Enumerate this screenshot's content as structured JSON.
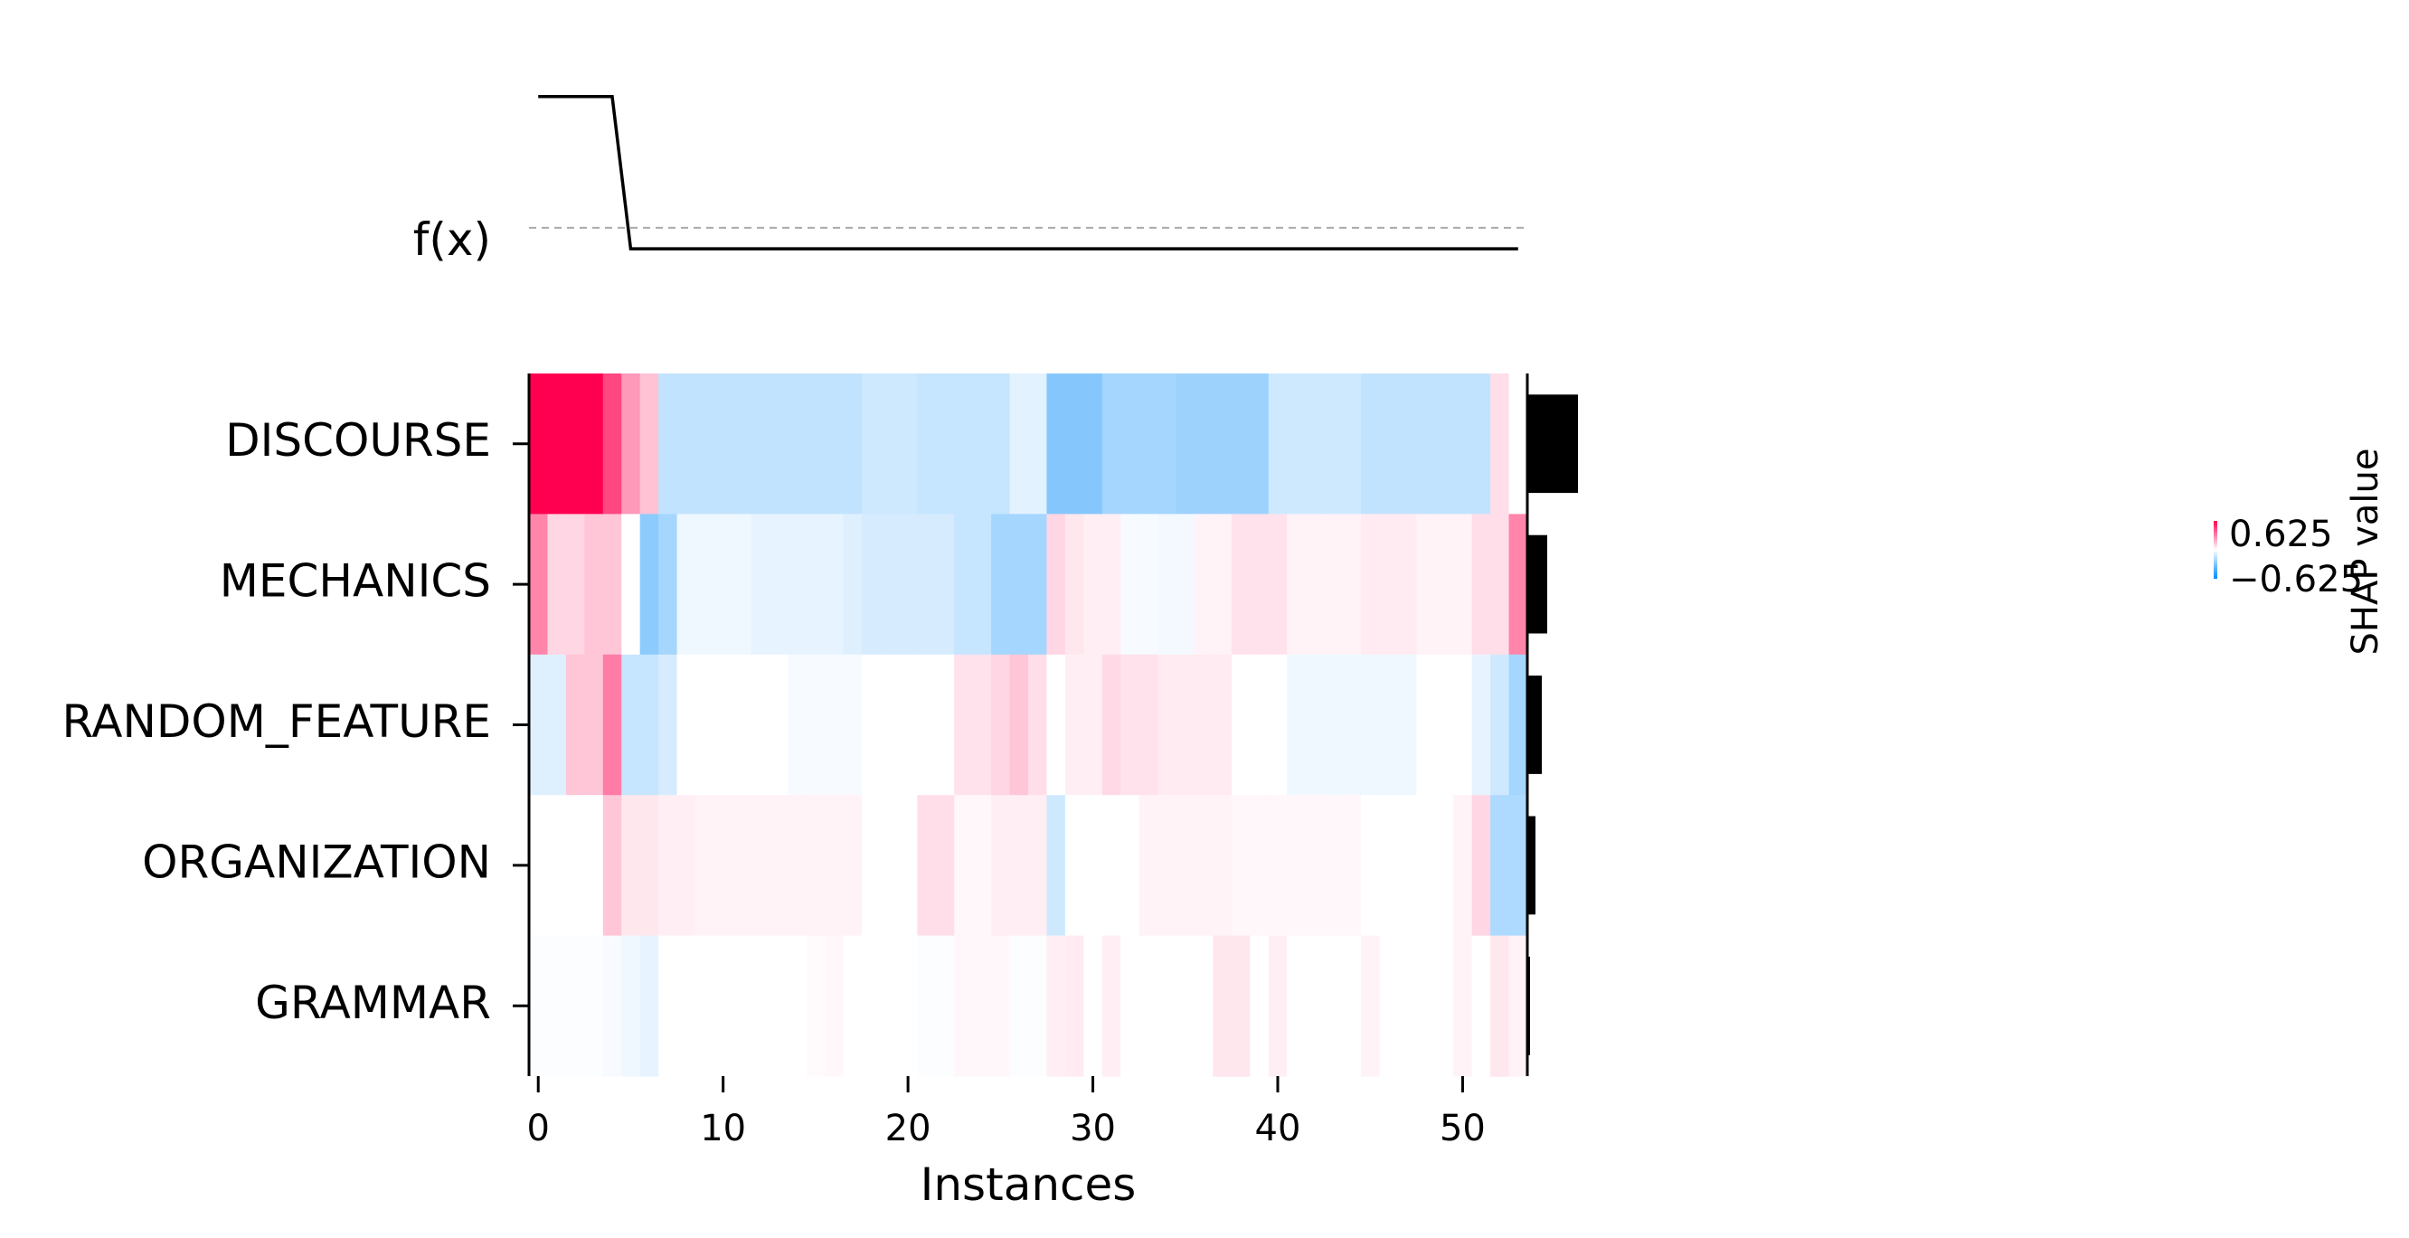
{
  "chart_data": {
    "type": "heatmap",
    "title": "",
    "xlabel": "Instances",
    "ylabel": "",
    "fx_label": "f(x)",
    "features": [
      "DISCOURSE",
      "MECHANICS",
      "RANDOM_FEATURE",
      "ORGANIZATION",
      "GRAMMAR"
    ],
    "x_ticks": [
      0,
      10,
      20,
      30,
      40,
      50
    ],
    "n_instances": 54,
    "xlim": [
      -0.5,
      53.5
    ],
    "colorbar": {
      "label": "SHAP value",
      "vmin": -0.625,
      "vmax": 0.625,
      "tick_labels": [
        "0.625",
        "−0.625"
      ]
    },
    "colors": {
      "positive": "#ff0051",
      "negative": "#008bfb",
      "neutral": "#ffffff"
    },
    "fx_values": [
      1.0,
      1.0,
      1.0,
      1.0,
      1.0,
      -0.16,
      -0.16,
      -0.16,
      -0.16,
      -0.16,
      -0.16,
      -0.16,
      -0.16,
      -0.16,
      -0.16,
      -0.16,
      -0.16,
      -0.16,
      -0.16,
      -0.16,
      -0.16,
      -0.16,
      -0.16,
      -0.16,
      -0.16,
      -0.16,
      -0.16,
      -0.16,
      -0.16,
      -0.16,
      -0.16,
      -0.16,
      -0.16,
      -0.16,
      -0.16,
      -0.16,
      -0.16,
      -0.16,
      -0.16,
      -0.16,
      -0.16,
      -0.16,
      -0.16,
      -0.16,
      -0.16,
      -0.16,
      -0.16,
      -0.16,
      -0.16,
      -0.16,
      -0.16,
      -0.16,
      -0.16,
      -0.16
    ],
    "fx_baseline": 0.0,
    "fx_ylim": [
      -0.4,
      1.15
    ],
    "mean_abs_shap": [
      0.55,
      0.21,
      0.15,
      0.08,
      0.02
    ],
    "mean_abs_xmax": 0.6,
    "shap_values": [
      [
        0.625,
        0.625,
        0.625,
        0.625,
        0.45,
        0.25,
        0.15,
        -0.15,
        -0.15,
        -0.15,
        -0.15,
        -0.15,
        -0.15,
        -0.15,
        -0.15,
        -0.15,
        -0.15,
        -0.15,
        -0.12,
        -0.12,
        -0.12,
        -0.14,
        -0.14,
        -0.14,
        -0.14,
        -0.14,
        -0.07,
        -0.07,
        -0.3,
        -0.3,
        -0.3,
        -0.22,
        -0.22,
        -0.22,
        -0.22,
        -0.24,
        -0.24,
        -0.24,
        -0.24,
        -0.24,
        -0.12,
        -0.12,
        -0.12,
        -0.12,
        -0.12,
        -0.15,
        -0.15,
        -0.15,
        -0.15,
        -0.15,
        -0.15,
        -0.15,
        0.08,
        0.0
      ],
      [
        0.3,
        0.1,
        0.1,
        0.14,
        0.14,
        0.0,
        -0.28,
        -0.22,
        -0.04,
        -0.04,
        -0.04,
        -0.04,
        -0.06,
        -0.06,
        -0.06,
        -0.06,
        -0.06,
        -0.08,
        -0.1,
        -0.1,
        -0.1,
        -0.1,
        -0.1,
        -0.14,
        -0.14,
        -0.22,
        -0.22,
        -0.22,
        0.1,
        0.06,
        0.04,
        0.04,
        -0.02,
        -0.02,
        -0.03,
        -0.03,
        0.03,
        0.03,
        0.07,
        0.07,
        0.07,
        0.03,
        0.03,
        0.03,
        0.03,
        0.05,
        0.05,
        0.05,
        0.03,
        0.03,
        0.03,
        0.08,
        0.08,
        0.3
      ],
      [
        -0.08,
        -0.08,
        0.14,
        0.14,
        0.32,
        -0.14,
        -0.14,
        -0.1,
        0.0,
        0.0,
        0.0,
        0.0,
        0.0,
        0.0,
        -0.02,
        -0.02,
        -0.02,
        -0.02,
        0.0,
        0.0,
        0.0,
        0.0,
        0.0,
        0.07,
        0.07,
        0.1,
        0.14,
        0.08,
        0.0,
        0.04,
        0.04,
        0.09,
        0.07,
        0.07,
        0.05,
        0.05,
        0.05,
        0.05,
        0.0,
        0.0,
        0.0,
        -0.04,
        -0.04,
        -0.04,
        -0.04,
        -0.04,
        -0.04,
        -0.04,
        0.0,
        0.0,
        0.0,
        -0.06,
        -0.12,
        -0.22
      ],
      [
        0.0,
        0.0,
        0.0,
        0.0,
        0.14,
        0.06,
        0.06,
        0.04,
        0.04,
        0.03,
        0.03,
        0.03,
        0.03,
        0.03,
        0.03,
        0.03,
        0.03,
        0.03,
        0.0,
        0.0,
        0.0,
        0.08,
        0.08,
        0.02,
        0.02,
        0.04,
        0.04,
        0.04,
        -0.12,
        0.0,
        0.0,
        0.0,
        0.0,
        0.03,
        0.03,
        0.03,
        0.03,
        0.03,
        0.02,
        0.02,
        0.02,
        0.02,
        0.02,
        0.02,
        0.02,
        0.0,
        0.0,
        0.0,
        0.0,
        0.0,
        0.03,
        0.1,
        -0.2,
        -0.2
      ],
      [
        -0.01,
        -0.01,
        -0.01,
        -0.01,
        -0.02,
        -0.04,
        -0.06,
        0.0,
        0.0,
        0.0,
        0.0,
        0.0,
        0.0,
        0.0,
        0.0,
        0.01,
        0.02,
        0.0,
        0.0,
        0.0,
        0.0,
        -0.01,
        -0.01,
        0.02,
        0.02,
        0.02,
        -0.01,
        -0.01,
        0.04,
        0.05,
        0.0,
        0.04,
        0.0,
        0.0,
        0.0,
        0.0,
        0.0,
        0.06,
        0.06,
        0.0,
        0.04,
        0.0,
        0.0,
        0.0,
        0.0,
        0.03,
        0.0,
        0.0,
        0.0,
        0.0,
        0.03,
        0.0,
        0.06,
        0.03
      ]
    ]
  }
}
